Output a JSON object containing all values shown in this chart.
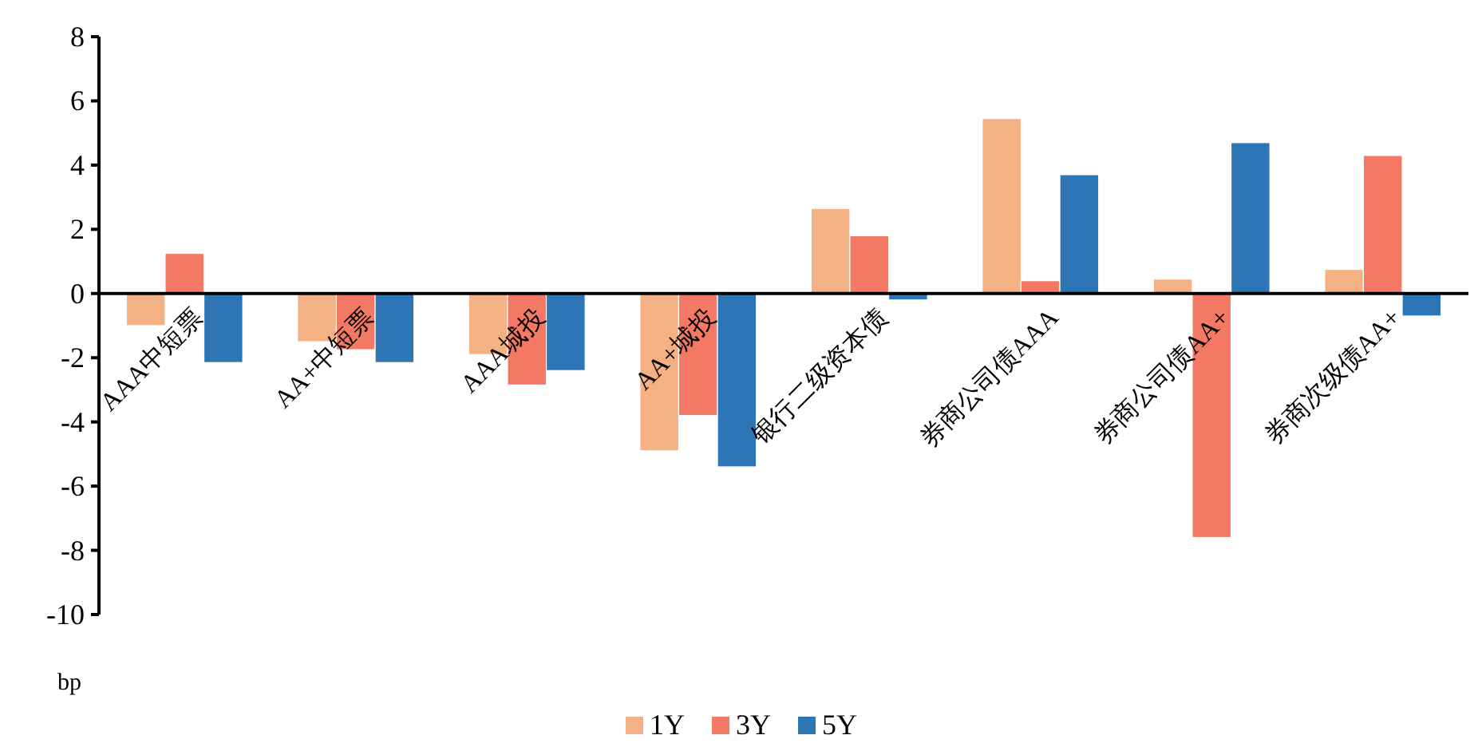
{
  "chart_data": {
    "type": "bar",
    "xlabel": "bp",
    "categories": [
      "AAA中短票",
      "AA+中短票",
      "AAA城投",
      "AA+城投",
      "银行二级资本债",
      "券商公司债AAA",
      "券商公司债AA+",
      "券商次级债AA+"
    ],
    "series": [
      {
        "name": "1Y",
        "color": "#f4b183",
        "values": [
          -1.0,
          -1.5,
          -1.9,
          -4.9,
          2.65,
          5.45,
          0.45,
          0.75
        ]
      },
      {
        "name": "3Y",
        "color": "#f47964",
        "values": [
          1.25,
          -1.75,
          -2.85,
          -3.8,
          1.8,
          0.4,
          -7.6,
          4.3
        ]
      },
      {
        "name": "5Y",
        "color": "#2e75b6",
        "values": [
          -2.15,
          -2.15,
          -2.4,
          -5.4,
          -0.2,
          3.7,
          4.7,
          -0.7
        ]
      }
    ],
    "ylim": [
      -10,
      8
    ],
    "yticks": [
      -10,
      -8,
      -6,
      -4,
      -2,
      0,
      2,
      4,
      6,
      8
    ],
    "grid": false,
    "legend": "bottom"
  }
}
